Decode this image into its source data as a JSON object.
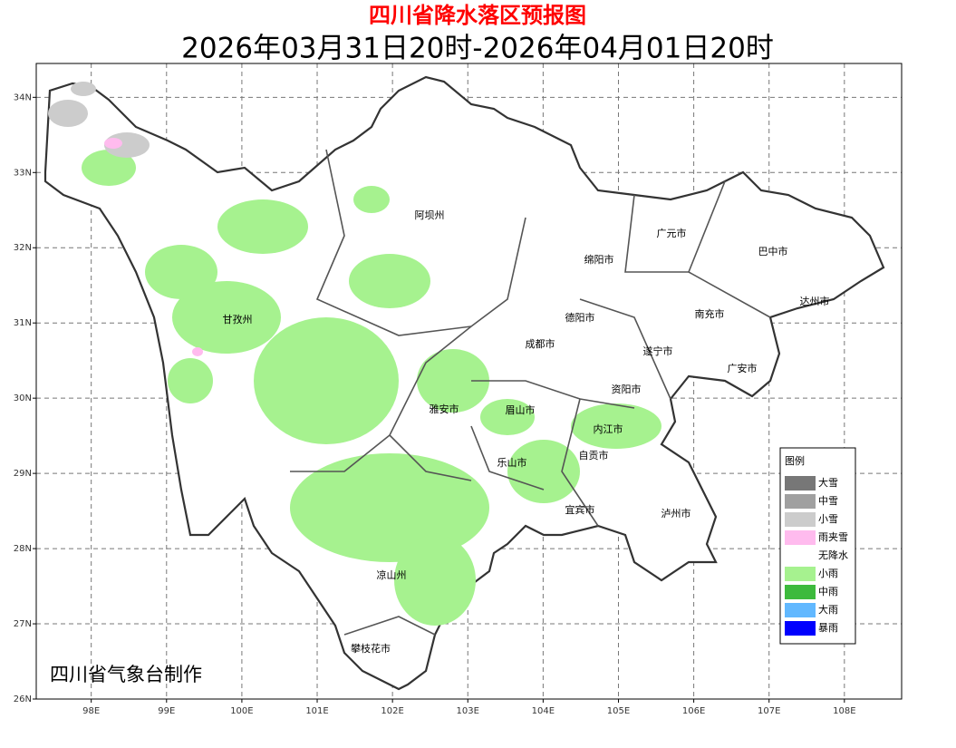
{
  "header": {
    "title": "四川省降水落区预报图",
    "subtitle": "2026年03月31日20时-2026年04月01日20时"
  },
  "map": {
    "xlim": [
      97.27,
      108.76
    ],
    "ylim": [
      26,
      34.45
    ],
    "xticks": [
      {
        "value": 98,
        "label": "98E"
      },
      {
        "value": 99,
        "label": "99E"
      },
      {
        "value": 100,
        "label": "100E"
      },
      {
        "value": 101,
        "label": "101E"
      },
      {
        "value": 102,
        "label": "102E"
      },
      {
        "value": 103,
        "label": "103E"
      },
      {
        "value": 104,
        "label": "104E"
      },
      {
        "value": 105,
        "label": "105E"
      },
      {
        "value": 106,
        "label": "106E"
      },
      {
        "value": 107,
        "label": "107E"
      },
      {
        "value": 108,
        "label": "108E"
      }
    ],
    "yticks": [
      {
        "value": 26,
        "label": "26N"
      },
      {
        "value": 27,
        "label": "27N"
      },
      {
        "value": 28,
        "label": "28N"
      },
      {
        "value": 29,
        "label": "29N"
      },
      {
        "value": 30,
        "label": "30N"
      },
      {
        "value": 31,
        "label": "31N"
      },
      {
        "value": 32,
        "label": "32N"
      },
      {
        "value": 33,
        "label": "33N"
      },
      {
        "value": 34,
        "label": "34N"
      }
    ],
    "grid": true
  },
  "places": [
    "阿坝州",
    "广元市",
    "巴中市",
    "绵阳市",
    "达州市",
    "甘孜州",
    "德阳市",
    "南充市",
    "成都市",
    "遂宁市",
    "广安市",
    "资阳市",
    "雅安市",
    "眉山市",
    "内江市",
    "自贡市",
    "乐山市",
    "宜宾市",
    "泸州市",
    "凉山州",
    "攀枝花市"
  ],
  "legend": {
    "title": "图例",
    "items": [
      {
        "label": "大雪",
        "color": "#777777"
      },
      {
        "label": "中雪",
        "color": "#a0a0a0"
      },
      {
        "label": "小雪",
        "color": "#cccccc"
      },
      {
        "label": "雨夹雪",
        "color": "#ffbbee"
      },
      {
        "label": "无降水",
        "color": "#ffffff"
      },
      {
        "label": "小雨",
        "color": "#a6f28f"
      },
      {
        "label": "中雨",
        "color": "#3dba3d"
      },
      {
        "label": "大雨",
        "color": "#61b8ff"
      },
      {
        "label": "暴雨",
        "color": "#0000fe"
      }
    ]
  },
  "footer": "四川省气象台制作"
}
